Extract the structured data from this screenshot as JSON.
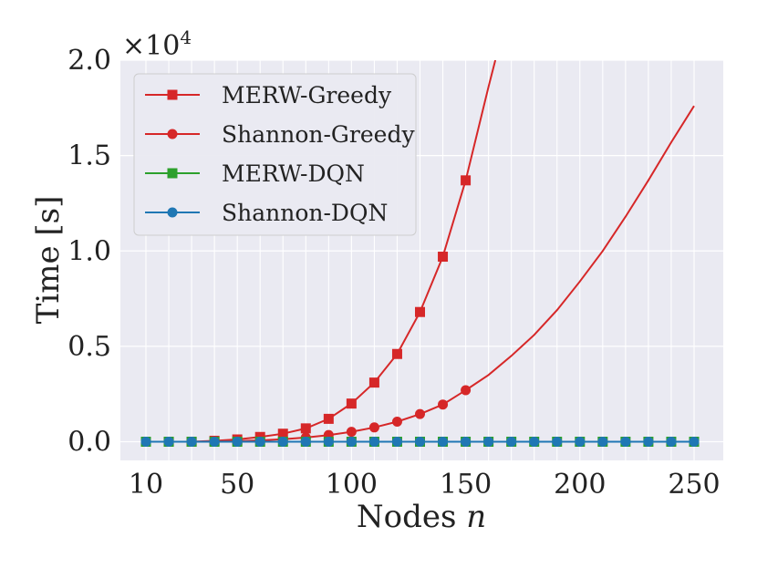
{
  "chart_data": {
    "type": "line",
    "title": "",
    "xlabel": "Nodes",
    "xlabel_var": "n",
    "ylabel": "Time [s]",
    "y_scale_label": "×10",
    "y_scale_exp": "4",
    "xlim": [
      10,
      250
    ],
    "ylim": [
      -0.1,
      2.0
    ],
    "x_ticks": [
      10,
      50,
      100,
      150,
      200,
      250
    ],
    "x_tick_labels": [
      "10",
      "50",
      "100",
      "150",
      "200",
      "250"
    ],
    "y_ticks": [
      0.0,
      0.5,
      1.0,
      1.5,
      2.0
    ],
    "y_tick_labels": [
      "0.0",
      "0.5",
      "1.0",
      "1.5",
      "2.0"
    ],
    "x_minor_grid": [
      10,
      20,
      30,
      40,
      50,
      60,
      70,
      80,
      90,
      100,
      110,
      120,
      130,
      140,
      150,
      160,
      170,
      180,
      190,
      200,
      210,
      220,
      230,
      240,
      250
    ],
    "legend_position": "top-left",
    "series": [
      {
        "name": "MERW-Greedy",
        "color": "#d62728",
        "marker": "square",
        "x": [
          10,
          20,
          30,
          40,
          50,
          60,
          70,
          80,
          90,
          100,
          110,
          120,
          130,
          140,
          150
        ],
        "values": [
          0.0,
          0.0,
          0.0,
          0.005,
          0.012,
          0.025,
          0.042,
          0.07,
          0.12,
          0.2,
          0.31,
          0.46,
          0.68,
          0.97,
          1.37
        ],
        "curve": {
          "x": [
            10,
            20,
            30,
            40,
            50,
            60,
            70,
            80,
            90,
            100,
            110,
            120,
            130,
            140,
            150,
            160,
            163
          ],
          "values": [
            0.0,
            0.0,
            0.0,
            0.005,
            0.012,
            0.025,
            0.042,
            0.07,
            0.12,
            0.2,
            0.31,
            0.46,
            0.68,
            0.97,
            1.37,
            1.86,
            2.0
          ]
        }
      },
      {
        "name": "Shannon-Greedy",
        "color": "#d62728",
        "marker": "circle",
        "x": [
          10,
          20,
          30,
          40,
          50,
          60,
          70,
          80,
          90,
          100,
          110,
          120,
          130,
          140,
          150
        ],
        "values": [
          0.0,
          0.0,
          0.0,
          0.0,
          0.003,
          0.007,
          0.013,
          0.022,
          0.035,
          0.052,
          0.075,
          0.105,
          0.145,
          0.195,
          0.27
        ],
        "curve": {
          "x": [
            10,
            20,
            30,
            40,
            50,
            60,
            70,
            80,
            90,
            100,
            110,
            120,
            130,
            140,
            150,
            160,
            170,
            180,
            190,
            200,
            210,
            220,
            230,
            240,
            250
          ],
          "values": [
            0.0,
            0.0,
            0.0,
            0.0,
            0.003,
            0.007,
            0.013,
            0.022,
            0.035,
            0.052,
            0.075,
            0.105,
            0.145,
            0.195,
            0.27,
            0.35,
            0.45,
            0.56,
            0.69,
            0.84,
            1.0,
            1.18,
            1.37,
            1.57,
            1.76
          ]
        }
      },
      {
        "name": "MERW-DQN",
        "color": "#2ca02c",
        "marker": "square",
        "x": [
          10,
          20,
          30,
          40,
          50,
          60,
          70,
          80,
          90,
          100,
          110,
          120,
          130,
          140,
          150,
          160,
          170,
          180,
          190,
          200,
          210,
          220,
          230,
          240,
          250
        ],
        "values": [
          0,
          0,
          0,
          0,
          0,
          0,
          0,
          0,
          0,
          0,
          0,
          0,
          0,
          0,
          0,
          0,
          0,
          0,
          0,
          0,
          0,
          0,
          0,
          0,
          0
        ]
      },
      {
        "name": "Shannon-DQN",
        "color": "#1f77b4",
        "marker": "circle",
        "x": [
          10,
          20,
          30,
          40,
          50,
          60,
          70,
          80,
          90,
          100,
          110,
          120,
          130,
          140,
          150,
          160,
          170,
          180,
          190,
          200,
          210,
          220,
          230,
          240,
          250
        ],
        "values": [
          0,
          0,
          0,
          0,
          0,
          0,
          0,
          0,
          0,
          0,
          0,
          0,
          0,
          0,
          0,
          0,
          0,
          0,
          0,
          0,
          0,
          0,
          0,
          0,
          0
        ]
      }
    ]
  }
}
